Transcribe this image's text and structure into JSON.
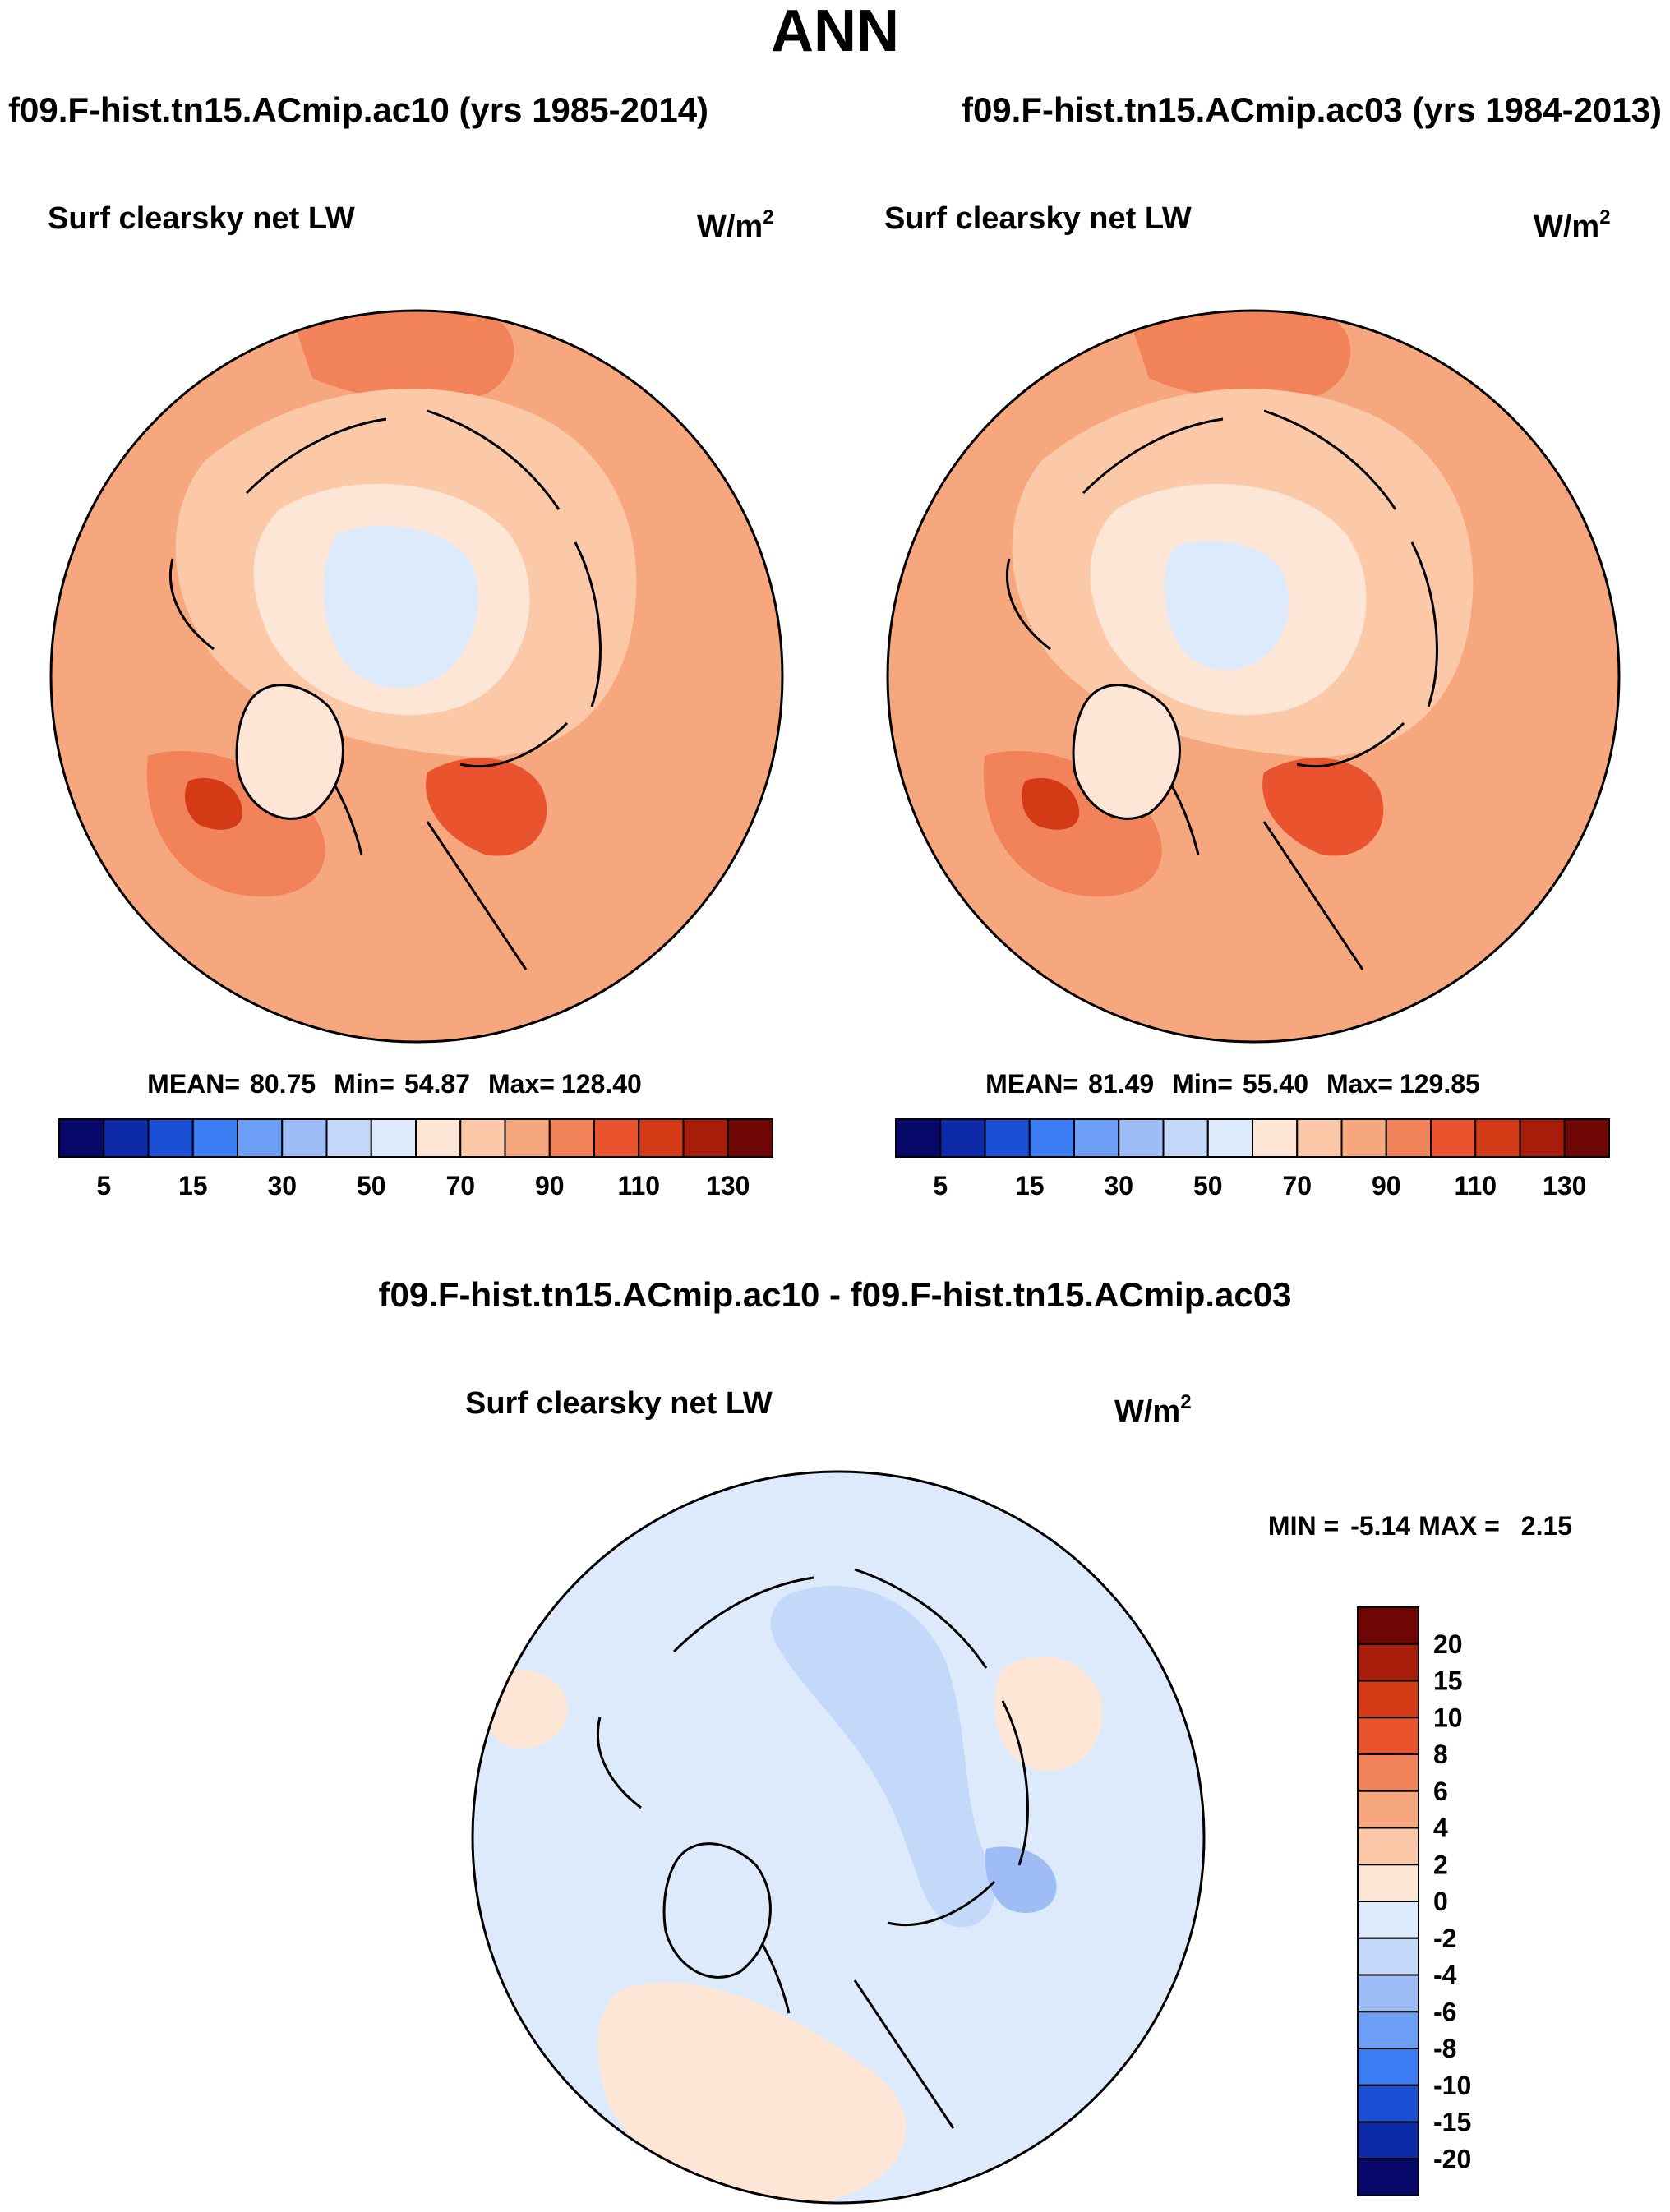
{
  "page_title": "ANN",
  "chart_data": [
    {
      "type": "heatmap",
      "projection": "north-polar-stereographic",
      "case_header": "f09.F-hist.tn15.ACmip.ac10 (yrs 1985-2014)",
      "title": "Surf clearsky net LW",
      "units": "W/m",
      "units_sup": "2",
      "stats": {
        "mean_label": "MEAN=",
        "mean": "80.75",
        "min_label": "Min=",
        "min": "54.87",
        "max_label": "Max=",
        "max": "128.40"
      },
      "levels": [
        5,
        10,
        15,
        20,
        30,
        40,
        50,
        60,
        70,
        80,
        90,
        100,
        110,
        120,
        130
      ],
      "tick_labels": [
        "5",
        "15",
        "30",
        "50",
        "70",
        "90",
        "110",
        "130"
      ]
    },
    {
      "type": "heatmap",
      "projection": "north-polar-stereographic",
      "case_header": "f09.F-hist.tn15.ACmip.ac03 (yrs 1984-2013)",
      "title": "Surf clearsky net LW",
      "units": "W/m",
      "units_sup": "2",
      "stats": {
        "mean_label": "MEAN=",
        "mean": "81.49",
        "min_label": "Min=",
        "min": "55.40",
        "max_label": "Max=",
        "max": "129.85"
      },
      "levels": [
        5,
        10,
        15,
        20,
        30,
        40,
        50,
        60,
        70,
        80,
        90,
        100,
        110,
        120,
        130
      ],
      "tick_labels": [
        "5",
        "15",
        "30",
        "50",
        "70",
        "90",
        "110",
        "130"
      ]
    },
    {
      "type": "heatmap",
      "projection": "north-polar-stereographic",
      "case_header": "f09.F-hist.tn15.ACmip.ac10 - f09.F-hist.tn15.ACmip.ac03",
      "title": "Surf clearsky net LW",
      "units": "W/m",
      "units_sup": "2",
      "stats": {
        "min_label": "MIN =",
        "min": "-5.14",
        "max_label": "MAX =",
        "max": "2.15"
      },
      "levels": [
        -20,
        -15,
        -10,
        -8,
        -6,
        -4,
        -2,
        0,
        2,
        4,
        6,
        8,
        10,
        15,
        20
      ],
      "tick_labels": [
        "20",
        "15",
        "10",
        "8",
        "6",
        "4",
        "2",
        "0",
        "-2",
        "-4",
        "-6",
        "-8",
        "-10",
        "-15",
        "-20"
      ]
    }
  ],
  "colors": {
    "abs_scale": [
      "#08086b",
      "#0d2aa8",
      "#1a4fd6",
      "#3a7cf2",
      "#6c9ef5",
      "#9ebdf7",
      "#c4d8fa",
      "#ddeafb",
      "#fde6d6",
      "#fbc9a8",
      "#f7a77e",
      "#f2825a",
      "#e9542e",
      "#d43a16",
      "#a81d0a",
      "#6e0606"
    ],
    "diff_scale": [
      "#08086b",
      "#0d2aa8",
      "#1a4fd6",
      "#3a7cf2",
      "#6c9ef5",
      "#9ebdf7",
      "#c4d8fa",
      "#ddeafb",
      "#fde6d6",
      "#fbc9a8",
      "#f7a77e",
      "#f2825a",
      "#e9542e",
      "#d43a16",
      "#a81d0a",
      "#6e0606"
    ],
    "ice_core": "#ddeafb",
    "coast": "#000000"
  }
}
